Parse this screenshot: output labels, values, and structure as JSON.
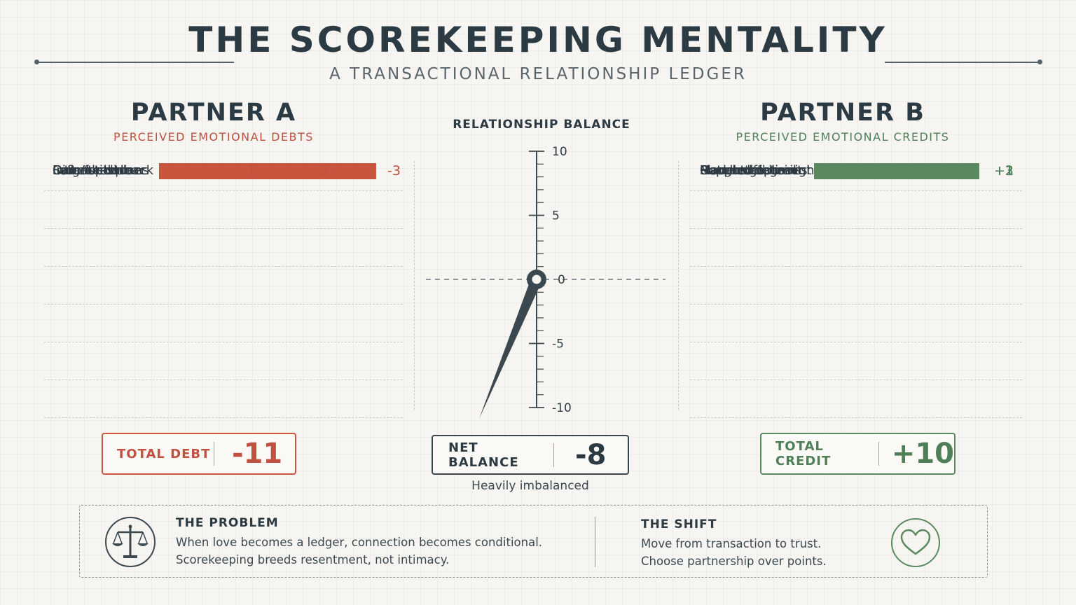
{
  "header": {
    "title": "THE SCOREKEEPING MENTALITY",
    "subtitle": "A TRANSACTIONAL RELATIONSHIP LEDGER"
  },
  "partner_a": {
    "title": "PARTNER A",
    "subtitle": "PERCEIVED EMOTIONAL DEBTS",
    "color": "#c9553f",
    "total_label": "TOTAL DEBT",
    "total_value": "-11"
  },
  "partner_b": {
    "title": "PARTNER B",
    "subtitle": "PERCEIVED EMOTIONAL CREDITS",
    "color": "#5b8a60",
    "total_label": "TOTAL CREDIT",
    "total_value": "+10"
  },
  "balance": {
    "title": "RELATIONSHIP BALANCE",
    "net_label": "NET BALANCE",
    "net_value": "-8",
    "caption": "Heavily imbalanced",
    "scale_min": -10,
    "scale_max": 10,
    "tick_labels": [
      "10",
      "5",
      "0",
      "-5",
      "-10"
    ],
    "needle_color": "#3b4850"
  },
  "chart_data": [
    {
      "type": "bar",
      "series_name": "Partner A",
      "categories": [
        "Late for dinner",
        "Forgot chore",
        "Didn’t text back",
        "Interrupted",
        "Canceled plans",
        "Left mess",
        "Sarcastic tone"
      ],
      "values": [
        -3,
        -2,
        -2,
        -1,
        -1,
        -1,
        -1
      ],
      "value_labels": [
        "-3",
        "-2",
        "-2",
        "-1",
        "-1",
        "-1",
        "-1"
      ],
      "xlim": [
        0,
        3
      ]
    },
    {
      "type": "bar",
      "series_name": "Partner B",
      "categories": [
        "Bought groceries",
        "Listened to vent",
        "Made coffee",
        "Planned date night",
        "Handled admin",
        "Gave compliment",
        "Supported goal"
      ],
      "values": [
        3,
        2,
        1,
        1,
        1,
        1,
        1
      ],
      "value_labels": [
        "+3",
        "+2",
        "+1",
        "+1",
        "+1",
        "+1",
        "+1"
      ],
      "xlim": [
        0,
        3
      ]
    }
  ],
  "footer": {
    "problem_title": "THE PROBLEM",
    "problem_line1": "When love becomes a ledger, connection becomes conditional.",
    "problem_line2": "Scorekeeping breeds resentment, not intimacy.",
    "shift_title": "THE SHIFT",
    "shift_line1": "Move from transaction to trust.",
    "shift_line2": "Choose partnership over points.",
    "problem_icon": "scales-icon",
    "shift_icon": "heart-icon"
  }
}
